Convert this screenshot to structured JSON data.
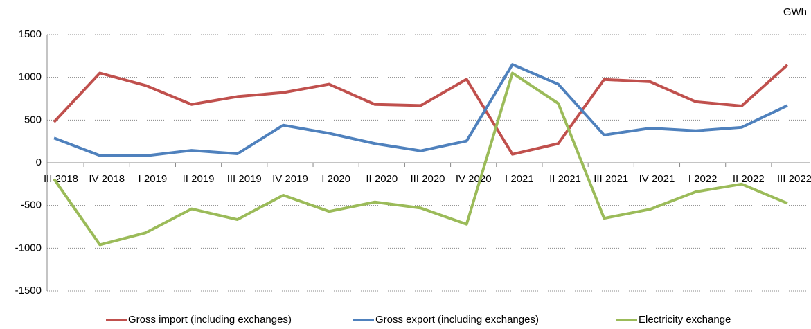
{
  "chart_data": {
    "type": "line",
    "unit_label": "GWh",
    "categories": [
      "III 2018",
      "IV 2018",
      "I 2019",
      "II 2019",
      "III 2019",
      "IV 2019",
      "I 2020",
      "II 2020",
      "III 2020",
      "IV 2020",
      "I 2021",
      "II 2021",
      "III 2021",
      "IV 2021",
      "I 2022",
      "II 2022",
      "III 2022"
    ],
    "series": [
      {
        "name": "Gross import (including exchanges)",
        "color": "#c0504d",
        "values": [
          477,
          1050,
          905,
          683,
          775,
          822,
          920,
          683,
          670,
          978,
          100,
          225,
          975,
          950,
          715,
          665,
          1145
        ]
      },
      {
        "name": "Gross export (including exchanges)",
        "color": "#4f81bd",
        "values": [
          290,
          85,
          82,
          145,
          105,
          440,
          345,
          225,
          140,
          255,
          1150,
          920,
          325,
          405,
          375,
          415,
          670
        ]
      },
      {
        "name": "Electricity exchange",
        "color": "#9bbb59",
        "values": [
          -190,
          -960,
          -820,
          -540,
          -665,
          -380,
          -570,
          -460,
          -530,
          -720,
          1050,
          695,
          -650,
          -545,
          -340,
          -250,
          -475
        ]
      }
    ],
    "ylim": [
      -1500,
      1500
    ],
    "yticks": [
      -1500,
      -1000,
      -500,
      0,
      500,
      1000,
      1500
    ],
    "grid": true,
    "legend": "bottom"
  }
}
